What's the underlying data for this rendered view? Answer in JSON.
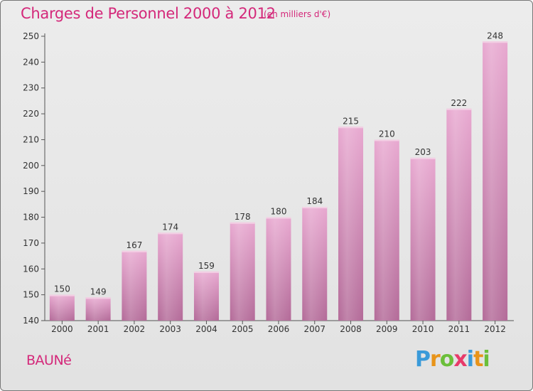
{
  "header": {
    "title": "Charges de Personnel 2000 à 2012",
    "subtitle": "(en milliers d'€)"
  },
  "commune": "BAUNé",
  "logo": {
    "letters": [
      "P",
      "r",
      "o",
      "x",
      "i",
      "t",
      "i"
    ],
    "colors": [
      "#3a9ad9",
      "#e8941a",
      "#6bbf3a",
      "#e83a6a",
      "#3a9ad9",
      "#e8941a",
      "#6bbf3a"
    ]
  },
  "colors": {
    "accent": "#d4287a",
    "bar_top": "#e8a8d0",
    "bar_bottom": "#b36a98"
  },
  "chart_data": {
    "type": "bar",
    "categories": [
      "2000",
      "2001",
      "2002",
      "2003",
      "2004",
      "2005",
      "2006",
      "2007",
      "2008",
      "2009",
      "2010",
      "2011",
      "2012"
    ],
    "values": [
      150,
      149,
      167,
      174,
      159,
      178,
      180,
      184,
      215,
      210,
      203,
      222,
      248
    ],
    "ylim": [
      140,
      250
    ],
    "yticks": [
      140,
      150,
      160,
      170,
      180,
      190,
      200,
      210,
      220,
      230,
      240,
      250
    ],
    "grid": false,
    "legend": false
  }
}
